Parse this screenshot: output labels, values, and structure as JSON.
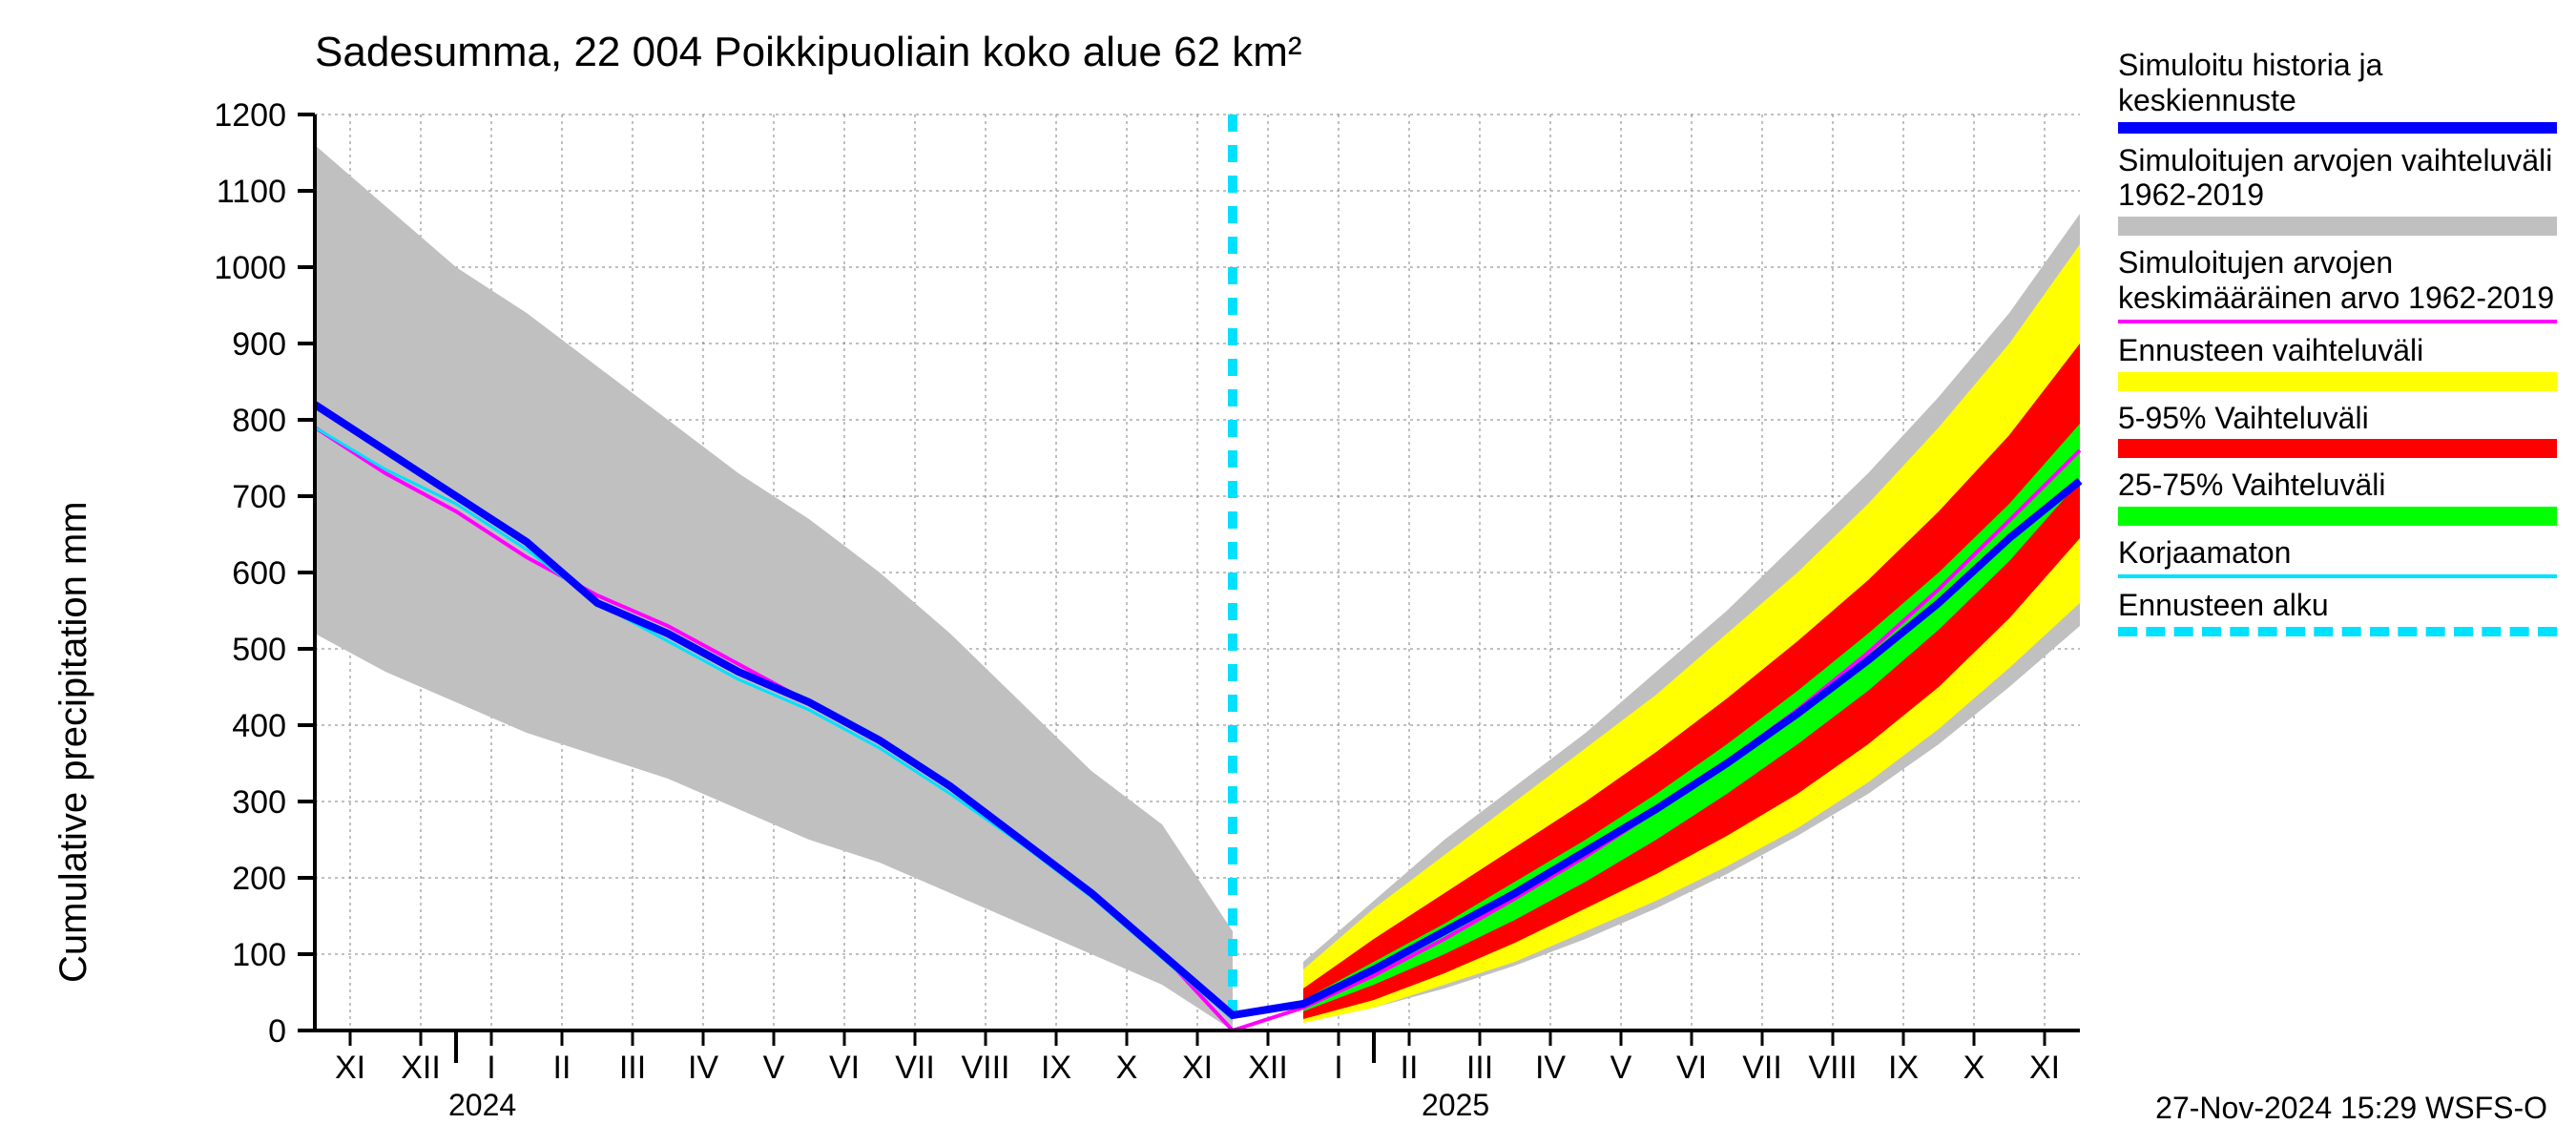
{
  "title": "Sadesumma, 22 004 Poikkipuoliain koko alue 62 km²",
  "ylabel": "Cumulative precipitation    mm",
  "footer": "27-Nov-2024 15:29 WSFS-O",
  "yearlabels": {
    "y2024": "2024",
    "y2025": "2025"
  },
  "chart": {
    "type": "line-band",
    "background_color": "#ffffff",
    "grid_color": "#808080",
    "grid_dash": "3,4",
    "axis_color": "#000000",
    "title_fontsize": 44,
    "label_fontsize": 40,
    "tick_fontsize": 34,
    "ylim": [
      0,
      1200
    ],
    "ytick_step": 100,
    "yticks": [
      0,
      100,
      200,
      300,
      400,
      500,
      600,
      700,
      800,
      900,
      1000,
      1100,
      1200
    ],
    "xticks": [
      "XI",
      "XII",
      "I",
      "II",
      "III",
      "IV",
      "V",
      "VI",
      "VII",
      "VIII",
      "IX",
      "X",
      "XI",
      "XII",
      "I",
      "II",
      "III",
      "IV",
      "V",
      "VI",
      "VII",
      "VIII",
      "IX",
      "X",
      "XI"
    ],
    "x_index_range": [
      0,
      25
    ],
    "forecast_start_x": 13,
    "colors": {
      "sim_hist": "#0000ff",
      "sim_range": "#c0c0c0",
      "sim_mean": "#ff00ff",
      "forecast_full": "#ffff00",
      "forecast_5_95": "#ff0000",
      "forecast_25_75": "#00ff00",
      "uncorrected": "#00e0ff",
      "forecast_start_line": "#00e0ff"
    },
    "line_widths": {
      "sim_hist": 8,
      "sim_mean": 4,
      "uncorrected": 3,
      "forecast_start_line": 10
    },
    "legend": [
      {
        "label": "Simuloitu historia ja keskiennuste",
        "key": "sim_hist",
        "style": "thick"
      },
      {
        "label": "Simuloitujen arvojen vaihteluväli 1962-2019",
        "key": "sim_range",
        "style": "band"
      },
      {
        "label": "Simuloitujen arvojen keskimääräinen arvo 1962-2019",
        "key": "sim_mean",
        "style": "thin"
      },
      {
        "label": "Ennusteen vaihteluväli",
        "key": "forecast_full",
        "style": "band"
      },
      {
        "label": "5-95% Vaihteluväli",
        "key": "forecast_5_95",
        "style": "band"
      },
      {
        "label": "25-75% Vaihteluväli",
        "key": "forecast_25_75",
        "style": "band"
      },
      {
        "label": "Korjaamaton",
        "key": "uncorrected",
        "style": "thin"
      },
      {
        "label": "Ennusteen alku",
        "key": "forecast_start_line",
        "style": "dashed"
      }
    ],
    "series": {
      "gray_upper_left": [
        1160,
        1080,
        1000,
        940,
        870,
        800,
        730,
        670,
        600,
        520,
        430,
        340,
        270,
        130
      ],
      "gray_lower_left": [
        520,
        470,
        430,
        390,
        360,
        330,
        290,
        250,
        220,
        180,
        140,
        100,
        60,
        0
      ],
      "gray_upper_right": [
        90,
        170,
        250,
        320,
        390,
        470,
        550,
        640,
        730,
        830,
        940,
        1070
      ],
      "gray_lower_right": [
        10,
        30,
        55,
        85,
        120,
        160,
        205,
        255,
        310,
        375,
        450,
        530
      ],
      "yellow_upper": [
        80,
        160,
        230,
        300,
        370,
        440,
        520,
        600,
        690,
        790,
        900,
        1030
      ],
      "yellow_lower": [
        10,
        30,
        60,
        90,
        130,
        170,
        215,
        265,
        325,
        395,
        475,
        560
      ],
      "red_upper": [
        55,
        120,
        180,
        240,
        300,
        365,
        435,
        510,
        590,
        680,
        780,
        900
      ],
      "red_lower": [
        15,
        40,
        75,
        115,
        160,
        205,
        255,
        310,
        375,
        450,
        540,
        645
      ],
      "green_upper": [
        40,
        90,
        140,
        195,
        250,
        310,
        375,
        445,
        520,
        600,
        690,
        795
      ],
      "green_lower": [
        25,
        60,
        100,
        145,
        195,
        250,
        310,
        375,
        445,
        525,
        615,
        720
      ],
      "sim_hist": [
        820,
        760,
        700,
        640,
        560,
        520,
        470,
        430,
        380,
        320,
        250,
        180,
        100,
        20,
        35,
        80,
        130,
        180,
        235,
        290,
        350,
        415,
        485,
        560,
        645,
        720
      ],
      "sim_mean": [
        790,
        730,
        680,
        620,
        570,
        530,
        480,
        430,
        380,
        320,
        250,
        180,
        100,
        0,
        30,
        72,
        120,
        173,
        228,
        288,
        352,
        420,
        495,
        578,
        668,
        760
      ],
      "uncorrected": [
        790,
        735,
        690,
        630,
        560,
        510,
        460,
        420,
        370,
        310,
        245,
        175,
        95,
        15
      ]
    }
  }
}
